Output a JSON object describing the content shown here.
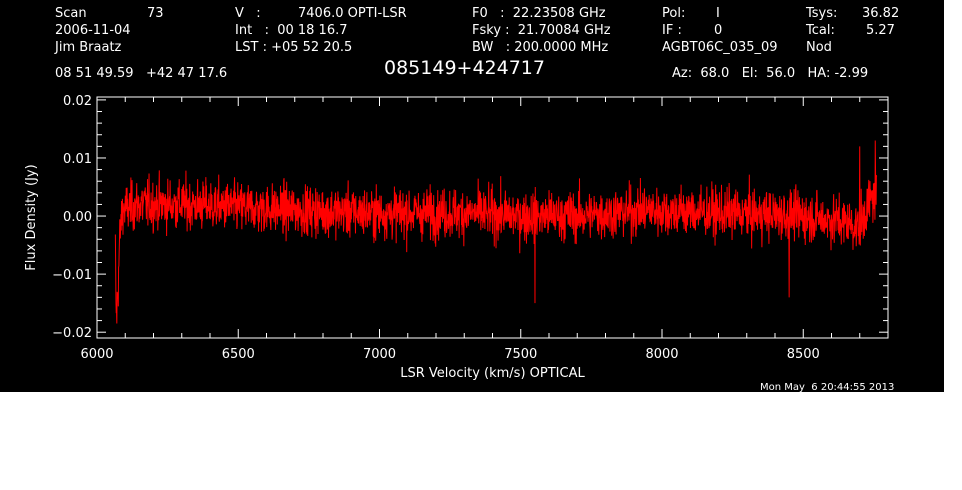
{
  "header": {
    "col1": [
      "Scan",
      "2006-11-04",
      "Jim Braatz"
    ],
    "scan_number": "73",
    "col2": [
      "V   :",
      "Int   :  00 18 16.7",
      "LST : +05 52 20.5"
    ],
    "velocity_value": "7406.0 OPTI-LSR",
    "col3": [
      "F0   :  22.23508 GHz",
      "Fsky :  21.70084 GHz",
      "BW   : 200.0000 MHz"
    ],
    "col4": [
      "Pol:",
      "IF :",
      "AGBT06C_035_09"
    ],
    "pol_value": "I",
    "if_value": "0",
    "col5": [
      "Tsys:",
      "Tcal:",
      "Nod"
    ],
    "tsys_value": "36.82",
    "tcal_value": "5.27",
    "coords": "08 51 49.59   +42 47 17.6",
    "source": "085149+424717",
    "az_el_ha": "Az:  68.0   El:  56.0   HA: -2.99",
    "timestamp": "Mon May  6 20:44:55 2013"
  },
  "colors": {
    "background": "#000000",
    "foreground": "#ffffff",
    "trace": "#ff0000"
  },
  "chart_data": {
    "type": "line",
    "xlabel": "LSR Velocity (km/s) OPTICAL",
    "ylabel": "Flux Density (Jy)",
    "xlim": [
      6000,
      8800
    ],
    "ylim": [
      -0.021,
      0.0205
    ],
    "xticks": [
      6000,
      6500,
      7000,
      7500,
      8000,
      8500
    ],
    "xtick_labels": [
      "6000",
      "6500",
      "7000",
      "7500",
      "8000",
      "8500"
    ],
    "yticks": [
      -0.02,
      -0.01,
      0.0,
      0.01,
      0.02
    ],
    "ytick_labels": [
      "−0.02",
      "−0.01",
      "0.00",
      "0.01",
      "0.02"
    ],
    "series": [
      {
        "color": "#ff0000",
        "x_range": [
          6065,
          8760
        ],
        "noise_rms": 0.004,
        "anchors": [
          [
            6065,
            -0.006
          ],
          [
            6068,
            -0.018
          ],
          [
            6075,
            -0.012
          ],
          [
            6080,
            -0.004
          ],
          [
            6090,
            0.001
          ],
          [
            6150,
            0.002
          ],
          [
            6300,
            0.002
          ],
          [
            6500,
            0.0015
          ],
          [
            6700,
            0.001
          ],
          [
            7000,
            0.0005
          ],
          [
            7300,
            0.0005
          ],
          [
            7500,
            0.0
          ],
          [
            7700,
            0.0
          ],
          [
            7950,
            0.001
          ],
          [
            8200,
            0.0005
          ],
          [
            8500,
            0.0
          ],
          [
            8650,
            -0.001
          ],
          [
            8700,
            -0.002
          ],
          [
            8730,
            0.002
          ],
          [
            8760,
            0.004
          ]
        ],
        "notable_points": [
          [
            6070,
            -0.0185
          ],
          [
            7550,
            -0.015
          ],
          [
            8450,
            -0.014
          ],
          [
            8755,
            0.013
          ],
          [
            8700,
            0.012
          ]
        ]
      }
    ]
  }
}
